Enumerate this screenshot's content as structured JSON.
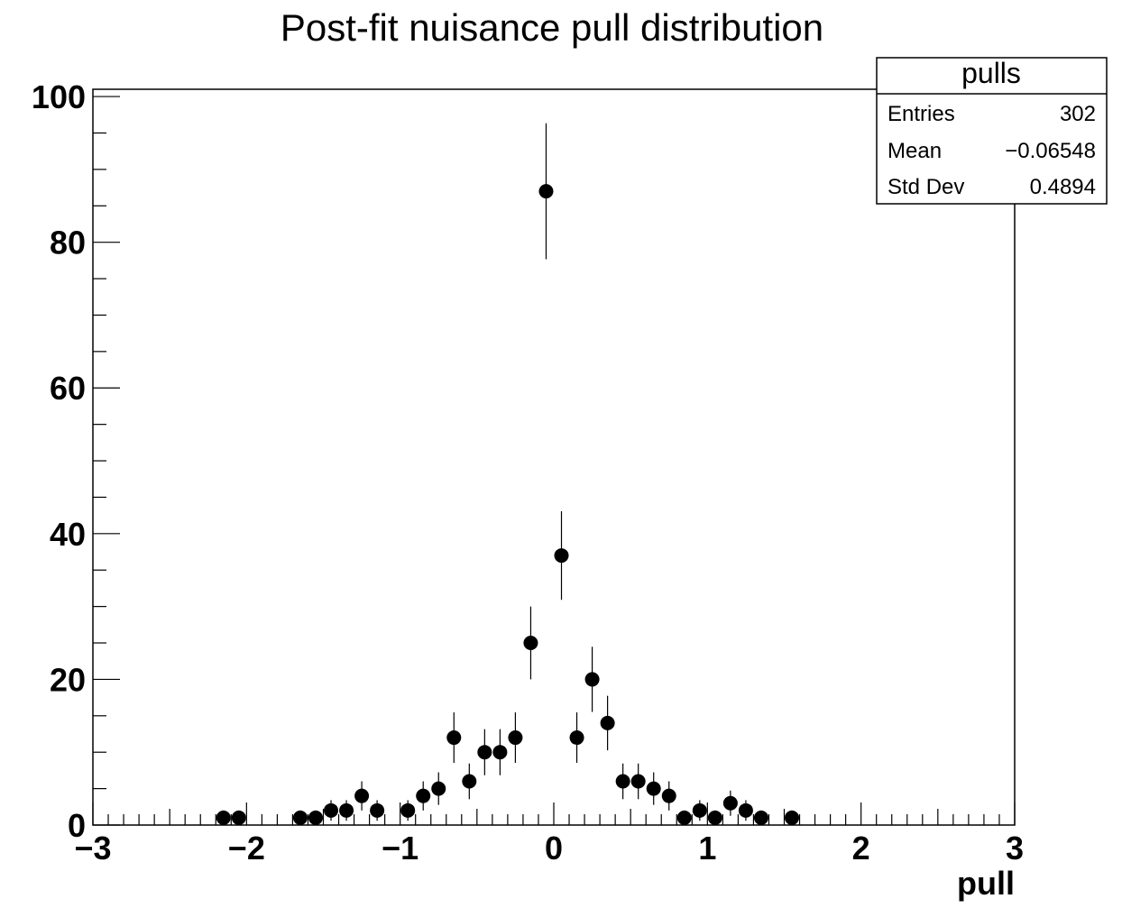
{
  "chart_data": {
    "type": "scatter",
    "title": "Post-fit nuisance pull distribution",
    "xlabel": "pull",
    "ylabel": "",
    "xlim": [
      -3,
      3
    ],
    "ylim": [
      0,
      101
    ],
    "grid": false,
    "x_ticks": [
      -3,
      -2,
      -1,
      0,
      1,
      2,
      3
    ],
    "x_tick_labels": [
      "−3",
      "−2",
      "−1",
      "0",
      "1",
      "2",
      "3"
    ],
    "y_ticks": [
      0,
      20,
      40,
      60,
      80,
      100
    ],
    "y_tick_labels": [
      "0",
      "20",
      "40",
      "60",
      "80",
      "100"
    ],
    "bin_width": 0.1,
    "error_bars": "sqrt(N)",
    "x": [
      -2.15,
      -2.05,
      -1.65,
      -1.55,
      -1.45,
      -1.35,
      -1.25,
      -1.15,
      -0.95,
      -0.85,
      -0.75,
      -0.65,
      -0.55,
      -0.45,
      -0.35,
      -0.25,
      -0.15,
      -0.05,
      0.05,
      0.15,
      0.25,
      0.35,
      0.45,
      0.55,
      0.65,
      0.75,
      0.85,
      0.95,
      1.05,
      1.15,
      1.25,
      1.35,
      1.55
    ],
    "y": [
      1,
      1,
      1,
      1,
      2,
      2,
      4,
      2,
      2,
      4,
      5,
      12,
      6,
      10,
      10,
      12,
      25,
      87,
      37,
      12,
      20,
      14,
      6,
      6,
      5,
      4,
      1,
      2,
      1,
      3,
      2,
      1,
      1
    ]
  },
  "stats_box": {
    "title": "pulls",
    "rows": [
      {
        "label": "Entries",
        "value": "302"
      },
      {
        "label": "Mean",
        "value": "−0.06548"
      },
      {
        "label": "Std Dev",
        "value": "0.4894"
      }
    ]
  }
}
